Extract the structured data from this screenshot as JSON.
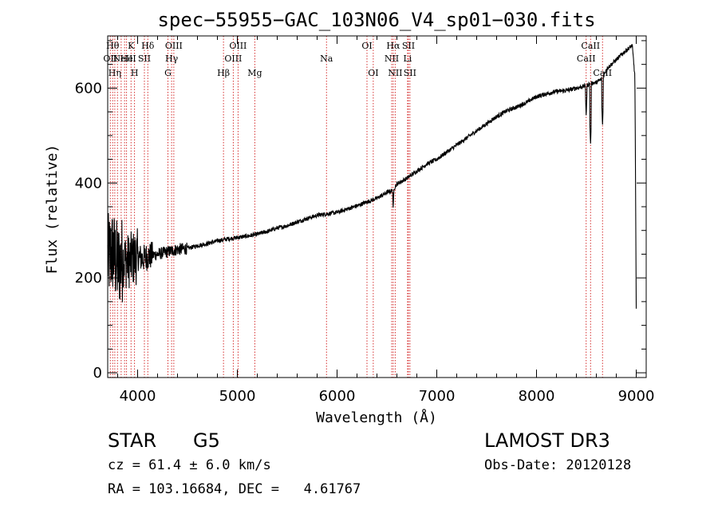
{
  "chart_data": {
    "type": "line",
    "title": "spec−55955−GAC_103N06_V4_sp01−030.fits",
    "xlabel": "Wavelength (Å)",
    "ylabel": "Flux (relative)",
    "xlim": [
      3700,
      9100
    ],
    "ylim": [
      -10,
      710
    ],
    "x_ticks": [
      4000,
      5000,
      6000,
      7000,
      8000,
      9000
    ],
    "x_tick_labels": [
      "4000",
      "5000",
      "6000",
      "7000",
      "8000",
      "9000"
    ],
    "y_ticks": [
      0,
      200,
      400,
      600
    ],
    "y_tick_labels": [
      "0",
      "200",
      "400",
      "600"
    ],
    "series": [
      {
        "name": "flux",
        "x": [
          3700,
          3750,
          3800,
          3850,
          3900,
          3950,
          4000,
          4050,
          4100,
          4200,
          4300,
          4400,
          4500,
          4600,
          4700,
          4800,
          4900,
          5000,
          5100,
          5200,
          5300,
          5400,
          5500,
          5600,
          5700,
          5800,
          5900,
          6000,
          6100,
          6200,
          6300,
          6400,
          6500,
          6560,
          6600,
          6700,
          6800,
          6900,
          7000,
          7100,
          7200,
          7300,
          7400,
          7500,
          7600,
          7700,
          7800,
          7900,
          8000,
          8100,
          8200,
          8300,
          8400,
          8498,
          8542,
          8600,
          8662,
          8700,
          8800,
          8900,
          8960,
          9000
        ],
        "y": [
          240,
          255,
          225,
          240,
          235,
          240,
          245,
          240,
          245,
          250,
          255,
          260,
          262,
          268,
          272,
          278,
          282,
          285,
          288,
          292,
          298,
          305,
          310,
          318,
          325,
          332,
          335,
          338,
          345,
          352,
          360,
          368,
          380,
          385,
          398,
          410,
          425,
          440,
          450,
          465,
          480,
          495,
          510,
          525,
          540,
          552,
          560,
          570,
          582,
          588,
          593,
          595,
          600,
          605,
          610,
          612,
          620,
          640,
          660,
          680,
          690,
          590
        ],
        "absorption_dips": [
          {
            "x": 6563,
            "y": 345
          },
          {
            "x": 8498,
            "y": 540
          },
          {
            "x": 8542,
            "y": 480
          },
          {
            "x": 8662,
            "y": 520
          },
          {
            "x": 9000,
            "y": 120
          }
        ]
      }
    ],
    "line_markers": [
      {
        "wave": 3726,
        "row": 2,
        "label": "OII"
      },
      {
        "wave": 3750,
        "row": 1,
        "label": "Hθ"
      },
      {
        "wave": 3771,
        "row": 3,
        "label": "Hη"
      },
      {
        "wave": 3798,
        "row": 3,
        "label": ""
      },
      {
        "wave": 3835,
        "row": 3,
        "label": ""
      },
      {
        "wave": 3869,
        "row": 2,
        "label": "NeIII"
      },
      {
        "wave": 3889,
        "row": 2,
        "label": "He"
      },
      {
        "wave": 3934,
        "row": 1,
        "label": "K"
      },
      {
        "wave": 3969,
        "row": 3,
        "label": "H"
      },
      {
        "wave": 4068,
        "row": 2,
        "label": "SII"
      },
      {
        "wave": 4102,
        "row": 1,
        "label": "Hδ"
      },
      {
        "wave": 4304,
        "row": 3,
        "label": "G"
      },
      {
        "wave": 4341,
        "row": 2,
        "label": "Hγ"
      },
      {
        "wave": 4363,
        "row": 1,
        "label": "OIII"
      },
      {
        "wave": 4861,
        "row": 3,
        "label": "Hβ"
      },
      {
        "wave": 4959,
        "row": 2,
        "label": "OIII"
      },
      {
        "wave": 5007,
        "row": 1,
        "label": "OIII"
      },
      {
        "wave": 5175,
        "row": 3,
        "label": "Mg"
      },
      {
        "wave": 5894,
        "row": 2,
        "label": "Na"
      },
      {
        "wave": 6300,
        "row": 1,
        "label": "OI"
      },
      {
        "wave": 6363,
        "row": 3,
        "label": "OI"
      },
      {
        "wave": 6548,
        "row": 2,
        "label": "NII"
      },
      {
        "wave": 6563,
        "row": 1,
        "label": "Hα"
      },
      {
        "wave": 6583,
        "row": 3,
        "label": "NII"
      },
      {
        "wave": 6707,
        "row": 2,
        "label": "Li"
      },
      {
        "wave": 6716,
        "row": 1,
        "label": "SII"
      },
      {
        "wave": 6731,
        "row": 3,
        "label": "SII"
      },
      {
        "wave": 8498,
        "row": 2,
        "label": "CaII"
      },
      {
        "wave": 8542,
        "row": 1,
        "label": "CaII"
      },
      {
        "wave": 8662,
        "row": 3,
        "label": "CaII"
      }
    ]
  },
  "info": {
    "object_class": "STAR",
    "subclass": "G5",
    "survey": "LAMOST DR3",
    "redshift_line": "cz = 61.4 ± 6.0 km/s",
    "obs_date": "Obs-Date: 20120128",
    "coords": "RA = 103.16684, DEC =   4.61767"
  }
}
